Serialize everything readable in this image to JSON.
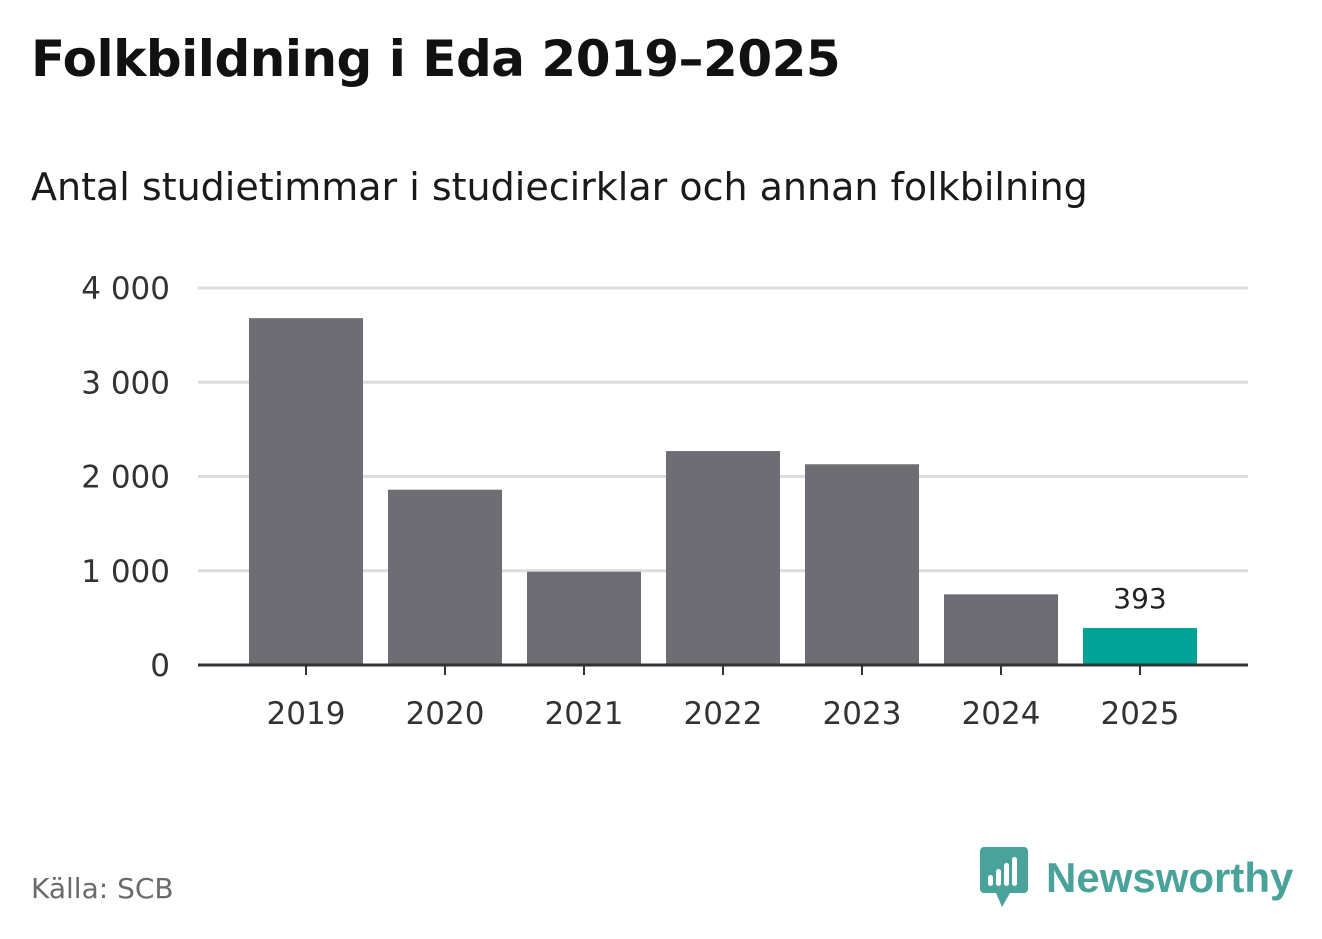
{
  "header": {
    "title": "Folkbildning i Eda 2019–2025",
    "subtitle": "Antal studietimmar i studiecirklar och annan folkbilning"
  },
  "footer": {
    "source": "Källa: SCB",
    "brand": "Newsworthy",
    "brand_icon": "newsworthy-logo-icon"
  },
  "colors": {
    "bar": "#6e6d74",
    "highlight": "#00a396",
    "grid": "#dcdcdc",
    "axis": "#333333",
    "brand": "#4aa39a"
  },
  "chart_data": {
    "type": "bar",
    "categories": [
      "2019",
      "2020",
      "2021",
      "2022",
      "2023",
      "2024",
      "2025"
    ],
    "values": [
      3680,
      1860,
      990,
      2270,
      2130,
      750,
      393
    ],
    "highlight_index": 6,
    "data_labels": [
      {
        "index": 6,
        "text": "393"
      }
    ],
    "y_ticks": [
      0,
      1000,
      2000,
      3000,
      4000
    ],
    "y_tick_labels": [
      "0",
      "1 000",
      "2 000",
      "3 000",
      "4 000"
    ],
    "ylim": [
      0,
      4000
    ],
    "grid": true,
    "legend": "none"
  }
}
